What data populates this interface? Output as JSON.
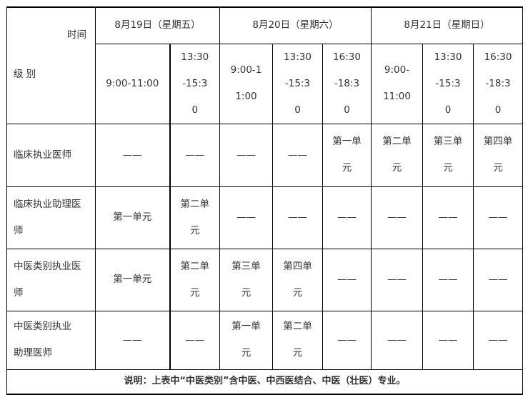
{
  "header": {
    "corner_top": "时间",
    "corner_bottom": "级 别",
    "days": [
      "8月19日（星期五）",
      "8月20日（星期六）",
      "8月21日（星期日）"
    ],
    "times": [
      "9:00-11:00",
      "13:30-15:30",
      "9:00-11:00",
      "13:30-15:30",
      "16:30-18:30",
      "9:00-11:00",
      "13:30-15:30",
      "16:30-18:30"
    ]
  },
  "rows": [
    {
      "label": "临床执业医师",
      "cells": [
        "——",
        "——",
        "——",
        "——",
        "第一单元",
        "第二单元",
        "第三单元",
        "第四单元"
      ]
    },
    {
      "label": "临床执业助理医师",
      "cells": [
        "第一单元",
        "第二单元",
        "——",
        "——",
        "——",
        "——",
        "——",
        "——"
      ]
    },
    {
      "label": "中医类别执业医师",
      "cells": [
        "第一单元",
        "第二单元",
        "第三单元",
        "第四单元",
        "——",
        "——",
        "——",
        "——"
      ]
    },
    {
      "label": "中医类别执业助理医师",
      "cells": [
        "——",
        "——",
        "第一单元",
        "第二单元",
        "——",
        "——",
        "——",
        "——"
      ]
    }
  ],
  "note": "说明：上表中“中医类别”含中医、中西医结合、中医（壮医）专业。"
}
